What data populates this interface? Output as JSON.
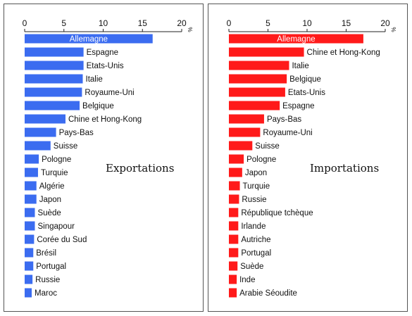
{
  "chart_data": [
    {
      "type": "bar",
      "orientation": "horizontal",
      "title": "Exportations",
      "unit": "%",
      "xlim": [
        0,
        20
      ],
      "ticks": [
        0,
        5,
        10,
        15,
        20
      ],
      "color": "#3b6cf0",
      "categories": [
        "Allemagne",
        "Espagne",
        "Etats-Unis",
        "Italie",
        "Royaume-Uni",
        "Belgique",
        "Chine et Hong-Kong",
        "Pays-Bas",
        "Suisse",
        "Pologne",
        "Turquie",
        "Algérie",
        "Japon",
        "Suède",
        "Singapour",
        "Corée du Sud",
        "Brésil",
        "Portugal",
        "Russie",
        "Maroc"
      ],
      "values": [
        16.3,
        7.5,
        7.5,
        7.4,
        7.3,
        7.0,
        5.2,
        4.0,
        3.3,
        1.8,
        1.7,
        1.5,
        1.5,
        1.3,
        1.3,
        1.2,
        1.1,
        1.1,
        1.0,
        0.9
      ]
    },
    {
      "type": "bar",
      "orientation": "horizontal",
      "title": "Importations",
      "unit": "%",
      "xlim": [
        0,
        20
      ],
      "ticks": [
        0,
        5,
        10,
        15,
        20
      ],
      "color": "#ff1a1a",
      "categories": [
        "Allemagne",
        "Chine et Hong-Kong",
        "Italie",
        "Belgique",
        "Etats-Unis",
        "Espagne",
        "Pays-Bas",
        "Royaume-Uni",
        "Suisse",
        "Pologne",
        "Japon",
        "Turquie",
        "Russie",
        "République tchèque",
        "Irlande",
        "Autriche",
        "Portugal",
        "Suède",
        "Inde",
        "Arabie Séoudite"
      ],
      "values": [
        17.2,
        9.6,
        7.7,
        7.4,
        7.2,
        6.5,
        4.5,
        4.0,
        3.0,
        1.9,
        1.7,
        1.4,
        1.3,
        1.2,
        1.2,
        1.2,
        1.2,
        1.1,
        1.0,
        1.0
      ]
    }
  ]
}
